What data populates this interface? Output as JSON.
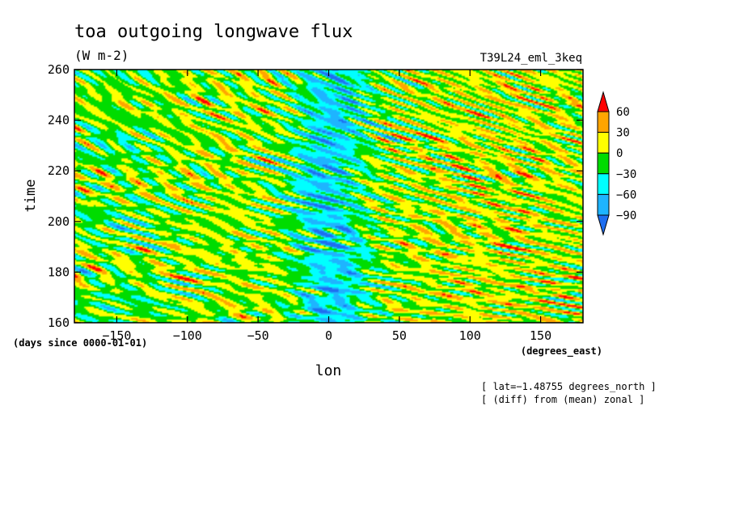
{
  "chart_data": {
    "type": "heatmap",
    "title": "toa outgoing longwave flux",
    "subtitle": "(W m-2)",
    "run_label": "T39L24_eml_3keq",
    "ylabel": "time",
    "xlabel": "lon",
    "x_units": "(degrees_east)",
    "y_units": "(days since 0000-01-01)",
    "xlim": [
      -180,
      180
    ],
    "ylim": [
      160,
      260
    ],
    "x_ticks": [
      -150,
      -100,
      -50,
      0,
      50,
      100,
      150
    ],
    "y_ticks": [
      160,
      180,
      200,
      220,
      240,
      260
    ],
    "x_tick_labels": [
      "−150",
      "−100",
      "−50",
      "0",
      "50",
      "100",
      "150"
    ],
    "y_tick_labels": [
      "160",
      "180",
      "200",
      "220",
      "240",
      "260"
    ],
    "notes": [
      "[ lat=−1.48755 degrees_north ]",
      "[ (diff) from (mean) zonal ]"
    ],
    "colorbar": {
      "levels": [
        -90,
        -60,
        -30,
        0,
        30,
        60
      ],
      "level_labels": [
        "−90",
        "−60",
        "−30",
        "0",
        "30",
        "60"
      ],
      "colors": [
        "#1e6ef0",
        "#1eb4ff",
        "#00ffff",
        "#00dc00",
        "#ffff00",
        "#ffa500",
        "#ff0000"
      ],
      "extend": "both"
    },
    "grid": false,
    "legend": "right"
  }
}
